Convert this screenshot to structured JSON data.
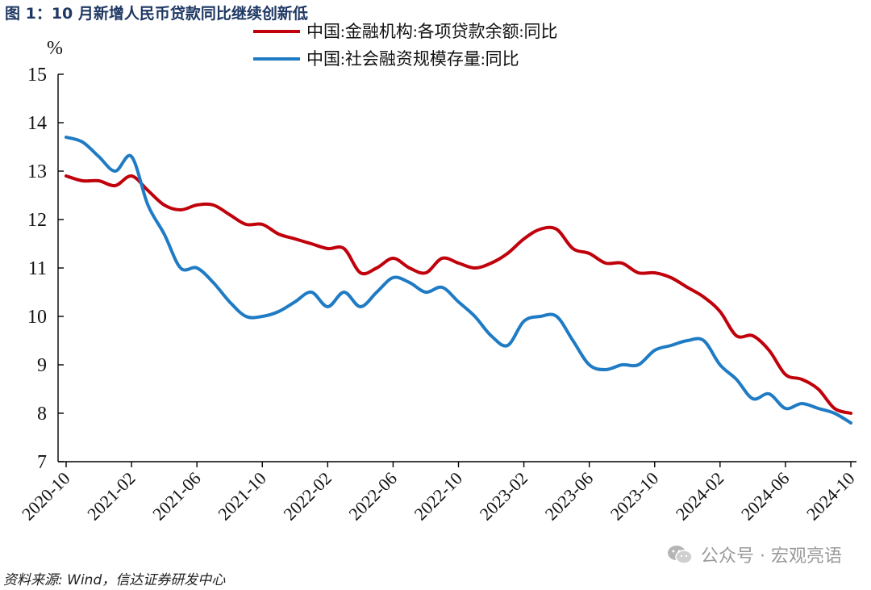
{
  "figure_title": "图 1：10 月新增人民币贷款同比继续创新低",
  "source": "资料来源: Wind，信达证券研发中心",
  "watermark": "公众号 · 宏观亮语",
  "colors": {
    "series_1": "#c0000b",
    "series_2": "#1f7bc4",
    "title": "#1f3864"
  },
  "chart_data": {
    "type": "line",
    "ylabel": "%",
    "ylim": [
      7,
      15
    ],
    "yticks": [
      7,
      8,
      9,
      10,
      11,
      12,
      13,
      14,
      15
    ],
    "xlim": [
      "2020-10",
      "2024-10"
    ],
    "xticks": [
      "2020-10",
      "2021-02",
      "2021-06",
      "2021-10",
      "2022-02",
      "2022-06",
      "2022-10",
      "2023-02",
      "2023-06",
      "2023-10",
      "2024-02",
      "2024-06",
      "2024-10"
    ],
    "grid": false,
    "legend_position": "top-center",
    "x": [
      "2020-10",
      "2020-11",
      "2020-12",
      "2021-01",
      "2021-02",
      "2021-03",
      "2021-04",
      "2021-05",
      "2021-06",
      "2021-07",
      "2021-08",
      "2021-09",
      "2021-10",
      "2021-11",
      "2021-12",
      "2022-01",
      "2022-02",
      "2022-03",
      "2022-04",
      "2022-05",
      "2022-06",
      "2022-07",
      "2022-08",
      "2022-09",
      "2022-10",
      "2022-11",
      "2022-12",
      "2023-01",
      "2023-02",
      "2023-03",
      "2023-04",
      "2023-05",
      "2023-06",
      "2023-07",
      "2023-08",
      "2023-09",
      "2023-10",
      "2023-11",
      "2023-12",
      "2024-01",
      "2024-02",
      "2024-03",
      "2024-04",
      "2024-05",
      "2024-06",
      "2024-07",
      "2024-08",
      "2024-09",
      "2024-10"
    ],
    "series": [
      {
        "name": "中国:金融机构:各项贷款余额:同比",
        "color": "#c0000b",
        "values": [
          12.9,
          12.8,
          12.8,
          12.7,
          12.9,
          12.6,
          12.3,
          12.2,
          12.3,
          12.3,
          12.1,
          11.9,
          11.9,
          11.7,
          11.6,
          11.5,
          11.4,
          11.4,
          10.9,
          11.0,
          11.2,
          11.0,
          10.9,
          11.2,
          11.1,
          11.0,
          11.1,
          11.3,
          11.6,
          11.8,
          11.8,
          11.4,
          11.3,
          11.1,
          11.1,
          10.9,
          10.9,
          10.8,
          10.6,
          10.4,
          10.1,
          9.6,
          9.6,
          9.3,
          8.8,
          8.7,
          8.5,
          8.1,
          8.0
        ]
      },
      {
        "name": "中国:社会融资规模存量:同比",
        "color": "#1f7bc4",
        "values": [
          13.7,
          13.6,
          13.3,
          13.0,
          13.3,
          12.3,
          11.7,
          11.0,
          11.0,
          10.7,
          10.3,
          10.0,
          10.0,
          10.1,
          10.3,
          10.5,
          10.2,
          10.5,
          10.2,
          10.5,
          10.8,
          10.7,
          10.5,
          10.6,
          10.3,
          10.0,
          9.6,
          9.4,
          9.9,
          10.0,
          10.0,
          9.5,
          9.0,
          8.9,
          9.0,
          9.0,
          9.3,
          9.4,
          9.5,
          9.5,
          9.0,
          8.7,
          8.3,
          8.4,
          8.1,
          8.2,
          8.1,
          8.0,
          7.8
        ]
      }
    ]
  }
}
